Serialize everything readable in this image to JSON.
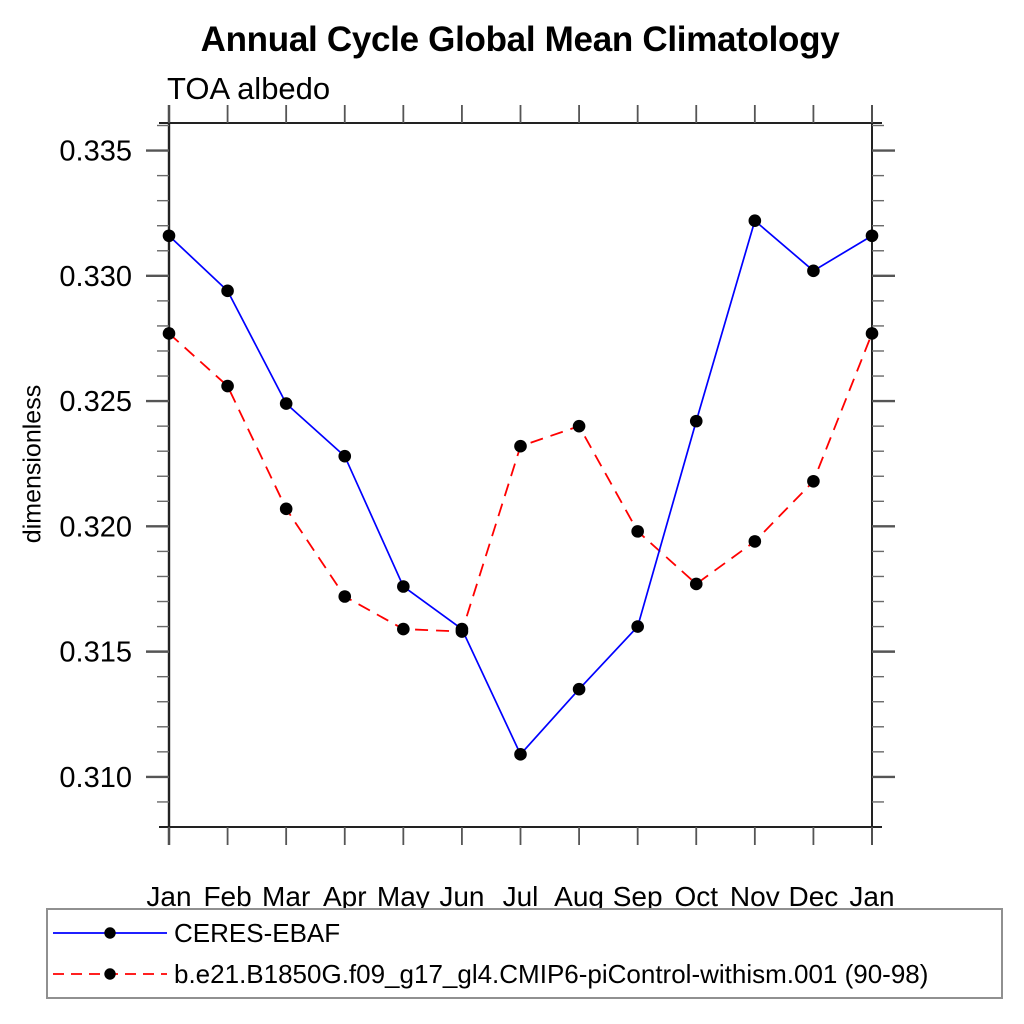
{
  "page": {
    "background_color": "#ffffff"
  },
  "chart_data": {
    "type": "line",
    "title": "Annual Cycle Global Mean Climatology",
    "subtitle": "TOA albedo",
    "xlabel": "",
    "ylabel": "dimensionless",
    "categories": [
      "Jan",
      "Feb",
      "Mar",
      "Apr",
      "May",
      "Jun",
      "Jul",
      "Aug",
      "Sep",
      "Oct",
      "Nov",
      "Dec",
      "Jan"
    ],
    "ylim": [
      0.308,
      0.3361
    ],
    "yticks_major": [
      0.31,
      0.315,
      0.32,
      0.325,
      0.33,
      0.335
    ],
    "ytick_labels": [
      "0.310",
      "0.315",
      "0.320",
      "0.325",
      "0.330",
      "0.335"
    ],
    "minor_tick_step": 0.001,
    "grid": false,
    "legend_position": "bottom",
    "axis_color": "#222222",
    "tick_color": "#555555",
    "series": [
      {
        "name": "CERES-EBAF",
        "color": "#0000ff",
        "line_style": "solid",
        "line_width": 1.7,
        "marker": "circle",
        "marker_color": "#000000",
        "values": [
          0.3316,
          0.3294,
          0.3249,
          0.3228,
          0.3176,
          0.3159,
          0.3109,
          0.3135,
          0.316,
          0.3242,
          0.3322,
          0.3302,
          0.3316
        ]
      },
      {
        "name": "b.e21.B1850G.f09_g17_gl4.CMIP6-piControl-withism.001 (90-98)",
        "color": "#ff0000",
        "line_style": "dashed",
        "line_width": 1.8,
        "marker": "circle",
        "marker_color": "#000000",
        "values": [
          0.3277,
          0.3256,
          0.3207,
          0.3172,
          0.3159,
          0.3158,
          0.3232,
          0.324,
          0.3198,
          0.3177,
          0.3194,
          0.3218,
          0.3277
        ]
      }
    ]
  }
}
